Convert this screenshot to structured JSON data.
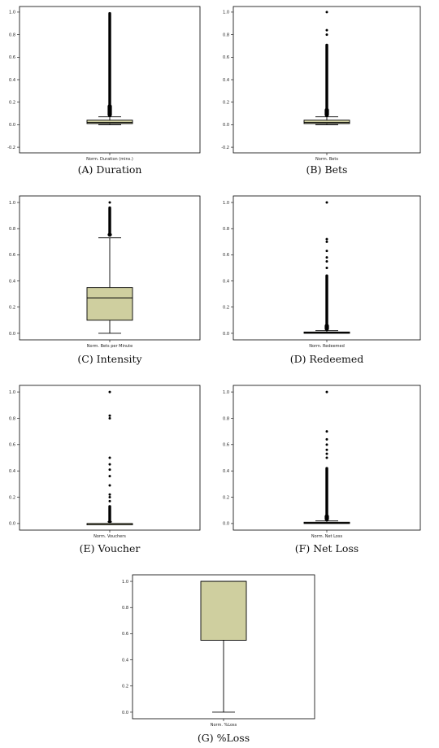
{
  "chart_data": [
    {
      "type": "box",
      "caption": "(A) Duration",
      "xlabel": "Norm. Duration (mins.)",
      "ylim": [
        -0.25,
        1.05
      ],
      "yticks": [
        "1.0",
        "0.8",
        "0.6",
        "0.4",
        "0.2",
        "0.0",
        "-0.2"
      ],
      "box": {
        "min": 0.0,
        "q1": 0.01,
        "median": 0.02,
        "q3": 0.04,
        "whisker_high": 0.07
      },
      "outliers": {
        "dense_from": 0.07,
        "dense_to": 1.0,
        "isolated": []
      },
      "colors": {
        "box_fill": "#cfcf9f",
        "stroke": "#000000"
      }
    },
    {
      "type": "box",
      "caption": "(B) Bets",
      "xlabel": "Norm. Bets",
      "ylim": [
        -0.25,
        1.05
      ],
      "yticks": [
        "1.0",
        "0.8",
        "0.6",
        "0.4",
        "0.2",
        "0.0",
        "-0.2"
      ],
      "box": {
        "min": 0.0,
        "q1": 0.01,
        "median": 0.02,
        "q3": 0.04,
        "whisker_high": 0.07
      },
      "outliers": {
        "dense_from": 0.07,
        "dense_to": 0.72,
        "isolated": [
          0.8,
          0.84,
          1.0
        ]
      },
      "colors": {
        "box_fill": "#cfcf9f",
        "stroke": "#000000"
      }
    },
    {
      "type": "box",
      "caption": "(C) Intensity",
      "xlabel": "Norm. Bets per Minute",
      "ylim": [
        -0.05,
        1.05
      ],
      "yticks": [
        "1.0",
        "0.8",
        "0.6",
        "0.4",
        "0.2",
        "0.0"
      ],
      "box": {
        "min": 0.0,
        "q1": 0.1,
        "median": 0.27,
        "q3": 0.35,
        "whisker_high": 0.73
      },
      "outliers": {
        "dense_from": 0.74,
        "dense_to": 0.97,
        "isolated": [
          1.0
        ]
      },
      "colors": {
        "box_fill": "#cfcf9f",
        "stroke": "#000000"
      }
    },
    {
      "type": "box",
      "caption": "(D) Redeemed",
      "xlabel": "Norm. Redeemed",
      "ylim": [
        -0.05,
        1.05
      ],
      "yticks": [
        "1.0",
        "0.8",
        "0.6",
        "0.4",
        "0.2",
        "0.0"
      ],
      "box": {
        "min": 0.0,
        "q1": 0.0,
        "median": 0.005,
        "q3": 0.01,
        "whisker_high": 0.02
      },
      "outliers": {
        "dense_from": 0.02,
        "dense_to": 0.45,
        "isolated": [
          0.5,
          0.55,
          0.58,
          0.63,
          0.7,
          0.72,
          1.0
        ]
      },
      "colors": {
        "box_fill": "#cfcf9f",
        "stroke": "#000000"
      }
    },
    {
      "type": "box",
      "caption": "(E) Voucher",
      "xlabel": "Norm. Vouchers",
      "ylim": [
        -0.05,
        1.05
      ],
      "yticks": [
        "1.0",
        "0.8",
        "0.6",
        "0.4",
        "0.2",
        "0.0"
      ],
      "box": {
        "min": 0.0,
        "q1": 0.0,
        "median": 0.0,
        "q3": 0.0,
        "whisker_high": 0.0
      },
      "outliers": {
        "dense_from": 0.005,
        "dense_to": 0.14,
        "isolated": [
          0.17,
          0.2,
          0.22,
          0.29,
          0.36,
          0.41,
          0.45,
          0.5,
          0.8,
          0.82,
          1.0
        ]
      },
      "colors": {
        "box_fill": "#cfcf9f",
        "stroke": "#000000"
      }
    },
    {
      "type": "box",
      "caption": "(F) Net Loss",
      "xlabel": "Norm. Net Loss",
      "ylim": [
        -0.05,
        1.05
      ],
      "yticks": [
        "1.0",
        "0.8",
        "0.6",
        "0.4",
        "0.2",
        "0.0"
      ],
      "box": {
        "min": 0.0,
        "q1": 0.0,
        "median": 0.005,
        "q3": 0.01,
        "whisker_high": 0.02
      },
      "outliers": {
        "dense_from": 0.02,
        "dense_to": 0.43,
        "isolated": [
          0.5,
          0.53,
          0.56,
          0.6,
          0.64,
          0.7,
          1.0
        ]
      },
      "colors": {
        "box_fill": "#cfcf9f",
        "stroke": "#000000"
      }
    },
    {
      "type": "box",
      "caption": "(G) %Loss",
      "xlabel": "Norm. %Loss",
      "ylim": [
        -0.05,
        1.05
      ],
      "yticks": [
        "1.0",
        "0.8",
        "0.6",
        "0.4",
        "0.2",
        "0.0"
      ],
      "box": {
        "min": 0.0,
        "q1": 0.55,
        "median": 1.0,
        "q3": 1.0,
        "whisker_high": 1.0
      },
      "outliers": {
        "dense_from": null,
        "dense_to": null,
        "isolated": []
      },
      "colors": {
        "box_fill": "#cfcf9f",
        "stroke": "#000000"
      }
    }
  ]
}
